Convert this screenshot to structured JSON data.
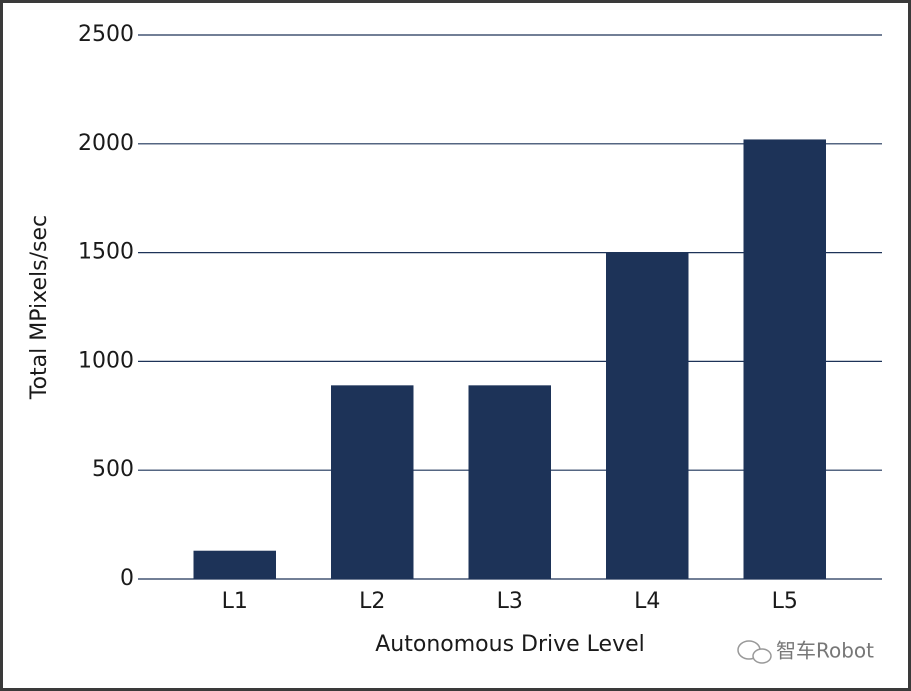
{
  "chart_data": {
    "type": "bar",
    "y_label": "Total MPixels/sec",
    "x_label": "Autonomous Drive Level",
    "categories": [
      "L1",
      "L2",
      "L3",
      "L4",
      "L5"
    ],
    "values": [
      130,
      890,
      890,
      1500,
      2020
    ],
    "color": "#1d3358",
    "ylim": [
      0,
      2500
    ],
    "yticks": [
      0,
      500,
      1000,
      1500,
      2000,
      2500
    ],
    "grid": true,
    "watermark": "智车Robot"
  }
}
